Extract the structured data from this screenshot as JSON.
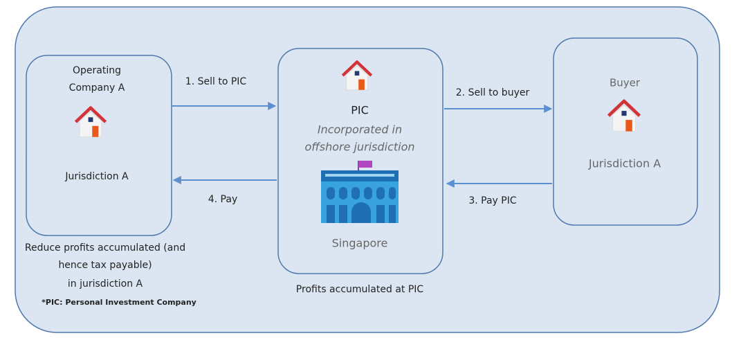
{
  "nodes": [
    {
      "lines": [
        "Operating",
        "Company A"
      ],
      "jurisdiction": "Jurisdiction A"
    },
    {
      "lines": [
        "PIC"
      ],
      "subtitle": [
        "Incorporated in",
        "offshore jurisdiction"
      ],
      "jurisdiction": "Singapore"
    },
    {
      "lines": [
        "Buyer"
      ],
      "jurisdiction": "Jurisdiction A"
    }
  ],
  "edges": [
    {
      "label": "1. Sell to PIC"
    },
    {
      "label": "2. Sell to buyer"
    },
    {
      "label": "3. Pay PIC"
    },
    {
      "label": "4. Pay"
    }
  ],
  "notes": {
    "left": [
      "Reduce profits accumulated (and",
      "hence tax payable)",
      "in jurisdiction A"
    ],
    "footnote": "*PIC: Personal Investment Company",
    "middle": "Profits accumulated at PIC"
  }
}
